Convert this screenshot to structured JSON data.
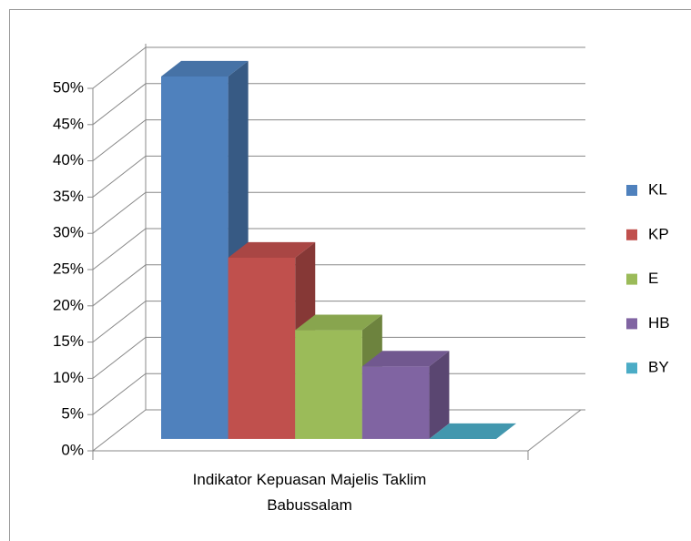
{
  "chart_data": {
    "type": "bar3d",
    "categories": [
      "Indikator Kepuasan Majelis Taklim Babussalam"
    ],
    "series": [
      {
        "name": "KL",
        "color": "#4f81bd",
        "values": [
          50
        ]
      },
      {
        "name": "KP",
        "color": "#c0504d",
        "values": [
          25
        ]
      },
      {
        "name": "E",
        "color": "#9bbb59",
        "values": [
          15
        ]
      },
      {
        "name": "HB",
        "color": "#8064a2",
        "values": [
          10
        ]
      },
      {
        "name": "BY",
        "color": "#4bacc6",
        "values": [
          0
        ]
      }
    ],
    "ylim": [
      0,
      50
    ],
    "yticks": [
      {
        "value": 0,
        "label": "0%"
      },
      {
        "value": 5,
        "label": "5%"
      },
      {
        "value": 10,
        "label": "10%"
      },
      {
        "value": 15,
        "label": "15%"
      },
      {
        "value": 20,
        "label": "20%"
      },
      {
        "value": 25,
        "label": "25%"
      },
      {
        "value": 30,
        "label": "30%"
      },
      {
        "value": 35,
        "label": "35%"
      },
      {
        "value": 40,
        "label": "40%"
      },
      {
        "value": 45,
        "label": "45%"
      },
      {
        "value": 50,
        "label": "50%"
      }
    ],
    "grid": true,
    "legend": "right"
  }
}
